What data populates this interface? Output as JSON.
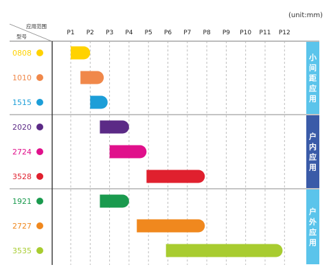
{
  "chart_data": {
    "type": "gantt",
    "unit_label": "(unit:mm)",
    "corner_header": {
      "top": "应用范围",
      "bottom": "型号"
    },
    "x_ticks": [
      "P1",
      "P2",
      "P3",
      "P4",
      "P5",
      "P6",
      "P7",
      "P8",
      "P9",
      "P10",
      "P11",
      "P12"
    ],
    "grid": "dashed vertical",
    "groups": [
      {
        "label": "小间距应用",
        "color": "#5bc4eb"
      },
      {
        "label": "户内应用",
        "color": "#3a5ba8"
      },
      {
        "label": "户外应用",
        "color": "#5bc4eb"
      }
    ],
    "rows": [
      {
        "model": "0808",
        "color": "#ffd200",
        "start": 1.0,
        "end": 2.0,
        "group": 0
      },
      {
        "model": "1010",
        "color": "#f0884a",
        "start": 1.5,
        "end": 2.7,
        "group": 0
      },
      {
        "model": "1515",
        "color": "#1c9ed8",
        "start": 2.0,
        "end": 2.9,
        "group": 0
      },
      {
        "model": "2020",
        "color": "#5b2a86",
        "start": 2.5,
        "end": 4.0,
        "group": 1
      },
      {
        "model": "2724",
        "color": "#e0108b",
        "start": 3.0,
        "end": 4.9,
        "group": 1
      },
      {
        "model": "3528",
        "color": "#e0202e",
        "start": 4.9,
        "end": 7.9,
        "group": 1
      },
      {
        "model": "1921",
        "color": "#1a9a4e",
        "start": 2.5,
        "end": 4.0,
        "group": 2
      },
      {
        "model": "2727",
        "color": "#f0881e",
        "start": 4.4,
        "end": 7.9,
        "group": 2
      },
      {
        "model": "3535",
        "color": "#a8cc30",
        "start": 5.9,
        "end": 11.9,
        "group": 2
      }
    ]
  }
}
